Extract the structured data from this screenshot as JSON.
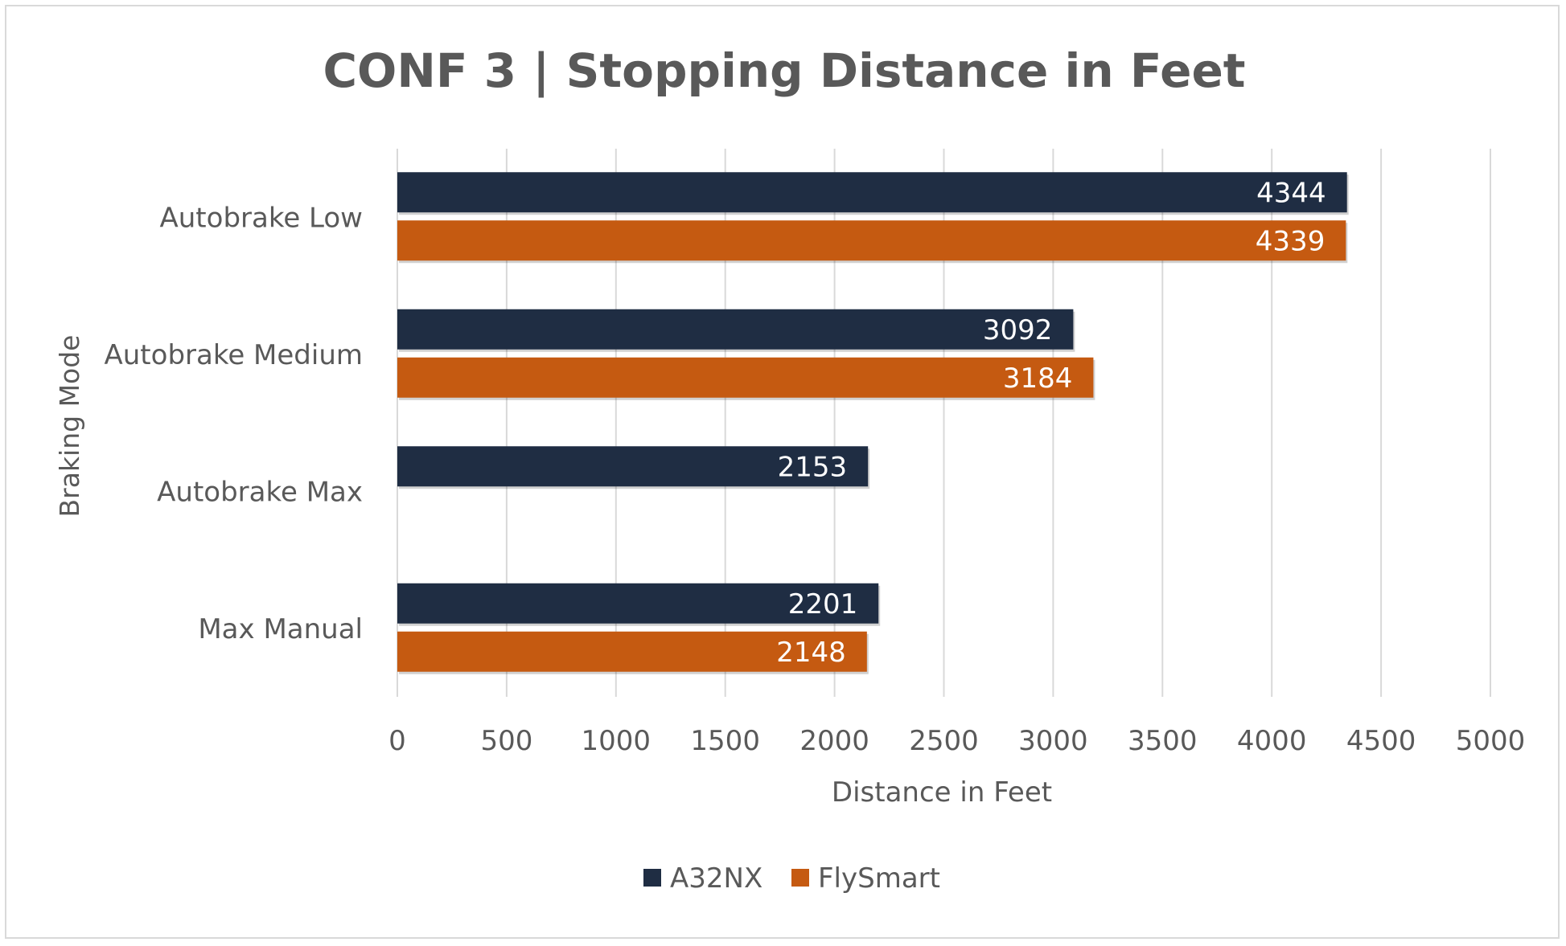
{
  "chart_data": {
    "type": "bar",
    "orientation": "horizontal",
    "title": "CONF 3 | Stopping Distance in Feet",
    "xlabel": "Distance in Feet",
    "ylabel": "Braking Mode",
    "categories": [
      "Autobrake Low",
      "Autobrake Medium",
      "Autobrake Max",
      "Max Manual"
    ],
    "series": [
      {
        "name": "A32NX",
        "color": "#1f2d43",
        "values": [
          4344,
          3092,
          2153,
          2201
        ]
      },
      {
        "name": "FlySmart",
        "color": "#c55a11",
        "values": [
          4339,
          3184,
          null,
          2148
        ]
      }
    ],
    "xlim": [
      0,
      5000
    ],
    "xticks": [
      0,
      500,
      1000,
      1500,
      2000,
      2500,
      3000,
      3500,
      4000,
      4500,
      5000
    ],
    "grid": "vertical",
    "data_labels": true,
    "legend_position": "bottom"
  },
  "colors": {
    "title": "#595959",
    "text": "#595959",
    "grid": "#d9d9d9",
    "data_label": "#ffffff"
  }
}
